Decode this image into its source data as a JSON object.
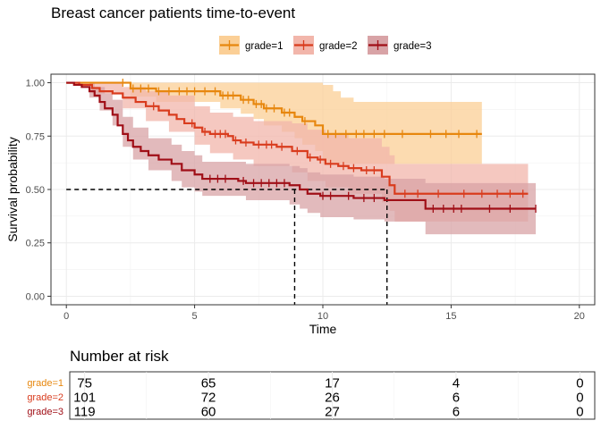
{
  "chart_data": {
    "type": "line",
    "title": "Breast cancer patients time-to-event",
    "xlabel": "Time",
    "ylabel": "Survival probability",
    "xlim": [
      -0.6,
      20.6
    ],
    "ylim": [
      -0.04,
      1.04
    ],
    "x_ticks": [
      0,
      5,
      10,
      15,
      20
    ],
    "y_ticks": [
      0.0,
      0.25,
      0.5,
      0.75,
      1.0
    ],
    "x_tick_labels": [
      "0",
      "5",
      "10",
      "15",
      "20"
    ],
    "y_tick_labels": [
      "0.00",
      "0.25",
      "0.50",
      "0.75",
      "1.00"
    ],
    "grid": true,
    "legend_position": "top",
    "median_line": {
      "y": 0.5,
      "x_start": 0,
      "x_end": 12.5,
      "drops": [
        8.9,
        12.5
      ]
    },
    "series": [
      {
        "name": "grade=1",
        "color": "#E7870E",
        "fill": "#FBCF96",
        "steps": [
          [
            0,
            1.0
          ],
          [
            2.5,
            0.973
          ],
          [
            3.5,
            0.96
          ],
          [
            6.0,
            0.94
          ],
          [
            6.8,
            0.92
          ],
          [
            7.3,
            0.9
          ],
          [
            7.7,
            0.88
          ],
          [
            8.4,
            0.86
          ],
          [
            8.9,
            0.84
          ],
          [
            9.2,
            0.82
          ],
          [
            9.7,
            0.8
          ],
          [
            10.0,
            0.76
          ],
          [
            16.2,
            0.76
          ]
        ],
        "lower": [
          [
            0,
            1.0
          ],
          [
            2.5,
            0.935
          ],
          [
            3.5,
            0.91
          ],
          [
            6.0,
            0.88
          ],
          [
            6.8,
            0.855
          ],
          [
            7.3,
            0.83
          ],
          [
            7.7,
            0.8
          ],
          [
            8.4,
            0.77
          ],
          [
            8.9,
            0.74
          ],
          [
            9.2,
            0.71
          ],
          [
            9.7,
            0.68
          ],
          [
            10.0,
            0.62
          ],
          [
            16.2,
            0.62
          ]
        ],
        "upper": [
          [
            0,
            1.0
          ],
          [
            10.0,
            0.99
          ],
          [
            10.4,
            0.96
          ],
          [
            10.7,
            0.93
          ],
          [
            11.2,
            0.91
          ],
          [
            16.2,
            0.91
          ]
        ],
        "censors": [
          [
            2.2,
            1.0
          ],
          [
            2.6,
            0.973
          ],
          [
            2.9,
            0.973
          ],
          [
            3.2,
            0.973
          ],
          [
            3.6,
            0.96
          ],
          [
            4.0,
            0.96
          ],
          [
            4.4,
            0.96
          ],
          [
            4.7,
            0.96
          ],
          [
            5.0,
            0.96
          ],
          [
            5.4,
            0.96
          ],
          [
            5.8,
            0.96
          ],
          [
            6.1,
            0.94
          ],
          [
            6.3,
            0.94
          ],
          [
            6.5,
            0.94
          ],
          [
            6.9,
            0.92
          ],
          [
            7.1,
            0.92
          ],
          [
            7.4,
            0.9
          ],
          [
            7.6,
            0.9
          ],
          [
            7.8,
            0.88
          ],
          [
            8.1,
            0.88
          ],
          [
            8.5,
            0.86
          ],
          [
            8.7,
            0.86
          ],
          [
            9.3,
            0.82
          ],
          [
            10.2,
            0.76
          ],
          [
            10.5,
            0.76
          ],
          [
            10.9,
            0.76
          ],
          [
            11.3,
            0.76
          ],
          [
            11.6,
            0.76
          ],
          [
            12.0,
            0.76
          ],
          [
            12.4,
            0.76
          ],
          [
            13.1,
            0.76
          ],
          [
            14.2,
            0.76
          ],
          [
            14.8,
            0.76
          ],
          [
            15.3,
            0.76
          ],
          [
            16.0,
            0.76
          ]
        ]
      },
      {
        "name": "grade=2",
        "color": "#D93C1E",
        "fill": "#F2B6AB",
        "steps": [
          [
            0,
            1.0
          ],
          [
            0.5,
            0.99
          ],
          [
            1.0,
            0.975
          ],
          [
            1.3,
            0.96
          ],
          [
            1.8,
            0.95
          ],
          [
            2.2,
            0.93
          ],
          [
            2.7,
            0.91
          ],
          [
            3.1,
            0.89
          ],
          [
            3.6,
            0.87
          ],
          [
            4.0,
            0.85
          ],
          [
            4.3,
            0.83
          ],
          [
            4.6,
            0.81
          ],
          [
            5.0,
            0.79
          ],
          [
            5.3,
            0.77
          ],
          [
            5.6,
            0.76
          ],
          [
            6.3,
            0.75
          ],
          [
            6.5,
            0.73
          ],
          [
            6.8,
            0.72
          ],
          [
            7.3,
            0.71
          ],
          [
            8.2,
            0.7
          ],
          [
            8.8,
            0.68
          ],
          [
            9.4,
            0.65
          ],
          [
            9.8,
            0.64
          ],
          [
            10.1,
            0.62
          ],
          [
            10.6,
            0.61
          ],
          [
            11.0,
            0.6
          ],
          [
            11.5,
            0.59
          ],
          [
            12.3,
            0.56
          ],
          [
            12.6,
            0.52
          ],
          [
            12.8,
            0.48
          ],
          [
            18.0,
            0.48
          ]
        ],
        "lower": [
          [
            0,
            1.0
          ],
          [
            1.0,
            0.95
          ],
          [
            2.2,
            0.88
          ],
          [
            3.1,
            0.82
          ],
          [
            4.0,
            0.77
          ],
          [
            5.0,
            0.71
          ],
          [
            5.6,
            0.67
          ],
          [
            6.5,
            0.64
          ],
          [
            7.3,
            0.61
          ],
          [
            8.8,
            0.58
          ],
          [
            9.4,
            0.54
          ],
          [
            10.1,
            0.51
          ],
          [
            11.0,
            0.48
          ],
          [
            12.3,
            0.44
          ],
          [
            12.6,
            0.4
          ],
          [
            12.8,
            0.35
          ],
          [
            18.0,
            0.35
          ]
        ],
        "upper": [
          [
            0,
            1.0
          ],
          [
            2.2,
            0.98
          ],
          [
            3.1,
            0.96
          ],
          [
            4.0,
            0.94
          ],
          [
            5.0,
            0.89
          ],
          [
            5.6,
            0.86
          ],
          [
            6.5,
            0.84
          ],
          [
            7.3,
            0.82
          ],
          [
            8.8,
            0.81
          ],
          [
            9.4,
            0.78
          ],
          [
            10.1,
            0.76
          ],
          [
            11.0,
            0.74
          ],
          [
            12.3,
            0.7
          ],
          [
            12.6,
            0.66
          ],
          [
            12.8,
            0.62
          ],
          [
            18.0,
            0.62
          ]
        ],
        "censors": [
          [
            3.4,
            0.89
          ],
          [
            4.9,
            0.81
          ],
          [
            5.4,
            0.77
          ],
          [
            5.8,
            0.76
          ],
          [
            6.0,
            0.76
          ],
          [
            6.2,
            0.76
          ],
          [
            6.6,
            0.73
          ],
          [
            7.0,
            0.72
          ],
          [
            7.5,
            0.71
          ],
          [
            7.8,
            0.71
          ],
          [
            8.0,
            0.71
          ],
          [
            8.4,
            0.7
          ],
          [
            9.0,
            0.68
          ],
          [
            9.5,
            0.65
          ],
          [
            9.9,
            0.64
          ],
          [
            10.3,
            0.62
          ],
          [
            10.8,
            0.61
          ],
          [
            11.2,
            0.6
          ],
          [
            11.7,
            0.59
          ],
          [
            12.0,
            0.59
          ],
          [
            13.2,
            0.48
          ],
          [
            13.7,
            0.48
          ],
          [
            14.5,
            0.48
          ],
          [
            15.5,
            0.48
          ],
          [
            16.2,
            0.48
          ],
          [
            16.8,
            0.48
          ],
          [
            17.3,
            0.48
          ],
          [
            17.8,
            0.48
          ]
        ]
      },
      {
        "name": "grade=3",
        "color": "#A00F17",
        "fill": "#D8A3A6",
        "steps": [
          [
            0,
            1.0
          ],
          [
            0.3,
            0.99
          ],
          [
            0.6,
            0.98
          ],
          [
            0.9,
            0.96
          ],
          [
            1.1,
            0.94
          ],
          [
            1.3,
            0.91
          ],
          [
            1.5,
            0.88
          ],
          [
            1.8,
            0.85
          ],
          [
            2.0,
            0.8
          ],
          [
            2.2,
            0.76
          ],
          [
            2.4,
            0.73
          ],
          [
            2.6,
            0.7
          ],
          [
            2.9,
            0.68
          ],
          [
            3.2,
            0.66
          ],
          [
            3.6,
            0.64
          ],
          [
            4.1,
            0.62
          ],
          [
            4.5,
            0.59
          ],
          [
            5.0,
            0.57
          ],
          [
            5.3,
            0.55
          ],
          [
            6.7,
            0.54
          ],
          [
            7.0,
            0.53
          ],
          [
            8.7,
            0.52
          ],
          [
            9.1,
            0.5
          ],
          [
            9.4,
            0.48
          ],
          [
            9.9,
            0.47
          ],
          [
            10.7,
            0.47
          ],
          [
            11.2,
            0.46
          ],
          [
            12.4,
            0.45
          ],
          [
            14.0,
            0.41
          ],
          [
            18.3,
            0.41
          ]
        ],
        "lower": [
          [
            0,
            1.0
          ],
          [
            0.9,
            0.93
          ],
          [
            1.3,
            0.87
          ],
          [
            1.8,
            0.8
          ],
          [
            2.2,
            0.7
          ],
          [
            2.6,
            0.64
          ],
          [
            3.2,
            0.59
          ],
          [
            4.1,
            0.54
          ],
          [
            4.5,
            0.51
          ],
          [
            5.0,
            0.49
          ],
          [
            5.3,
            0.47
          ],
          [
            7.0,
            0.45
          ],
          [
            8.7,
            0.43
          ],
          [
            9.1,
            0.41
          ],
          [
            9.4,
            0.39
          ],
          [
            9.9,
            0.37
          ],
          [
            11.2,
            0.36
          ],
          [
            12.4,
            0.35
          ],
          [
            14.0,
            0.29
          ],
          [
            18.3,
            0.29
          ]
        ],
        "upper": [
          [
            0,
            1.0
          ],
          [
            1.1,
            0.98
          ],
          [
            1.5,
            0.95
          ],
          [
            1.8,
            0.92
          ],
          [
            2.2,
            0.84
          ],
          [
            2.6,
            0.79
          ],
          [
            3.2,
            0.74
          ],
          [
            4.1,
            0.71
          ],
          [
            4.5,
            0.68
          ],
          [
            5.0,
            0.66
          ],
          [
            5.3,
            0.63
          ],
          [
            7.0,
            0.62
          ],
          [
            8.7,
            0.61
          ],
          [
            9.1,
            0.6
          ],
          [
            9.4,
            0.58
          ],
          [
            9.9,
            0.57
          ],
          [
            11.2,
            0.56
          ],
          [
            12.4,
            0.55
          ],
          [
            14.0,
            0.53
          ],
          [
            18.3,
            0.53
          ]
        ],
        "censors": [
          [
            5.6,
            0.55
          ],
          [
            5.9,
            0.55
          ],
          [
            6.2,
            0.55
          ],
          [
            6.9,
            0.54
          ],
          [
            7.3,
            0.53
          ],
          [
            7.6,
            0.53
          ],
          [
            7.9,
            0.53
          ],
          [
            8.2,
            0.53
          ],
          [
            8.5,
            0.53
          ],
          [
            10.0,
            0.47
          ],
          [
            10.3,
            0.47
          ],
          [
            11.0,
            0.47
          ],
          [
            11.6,
            0.46
          ],
          [
            12.0,
            0.46
          ],
          [
            14.3,
            0.41
          ],
          [
            14.7,
            0.41
          ],
          [
            15.1,
            0.41
          ],
          [
            15.4,
            0.41
          ],
          [
            16.5,
            0.41
          ],
          [
            17.3,
            0.41
          ],
          [
            18.3,
            0.41
          ]
        ]
      }
    ],
    "risk_table": {
      "title": "Number at risk",
      "times": [
        0,
        5,
        10,
        15,
        20
      ],
      "rows": [
        {
          "label": "grade=1",
          "color": "#E7870E",
          "values": [
            75,
            65,
            17,
            4,
            0
          ]
        },
        {
          "label": "grade=2",
          "color": "#D93C1E",
          "values": [
            101,
            72,
            26,
            6,
            0
          ]
        },
        {
          "label": "grade=3",
          "color": "#A00F17",
          "values": [
            119,
            60,
            27,
            6,
            0
          ]
        }
      ]
    }
  }
}
